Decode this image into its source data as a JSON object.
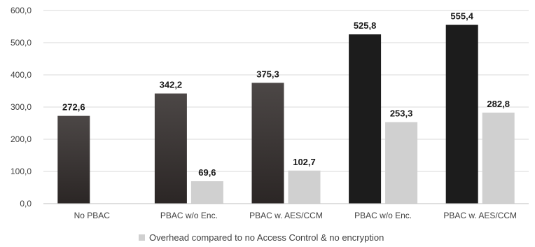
{
  "chart_data": {
    "type": "bar",
    "categories": [
      "No PBAC",
      "PBAC w/o Enc.",
      "PBAC w. AES/CCM",
      "PBAC w/o Enc.",
      "PBAC w. AES/CCM"
    ],
    "ylim": [
      0,
      600
    ],
    "yticks": [
      "0,0",
      "100,0",
      "200,0",
      "300,0",
      "400,0",
      "500,0",
      "600,0"
    ],
    "grid": true,
    "legend_position": "bottom",
    "series": [
      {
        "role": "total",
        "values": [
          272.6,
          342.2,
          375.3,
          525.8,
          555.4
        ],
        "labels": [
          "272,6",
          "342,2",
          "375,3",
          "525,8",
          "555,4"
        ],
        "colors": [
          "#3a3a3a",
          "#3a3a3a",
          "#3a3a3a",
          "#1c1c1c",
          "#1c1c1c"
        ]
      },
      {
        "name": "Overhead compared to no Access Control & no encryption",
        "role": "overhead",
        "values": [
          null,
          69.6,
          102.7,
          253.3,
          282.8
        ],
        "labels": [
          null,
          "69,6",
          "102,7",
          "253,3",
          "282,8"
        ],
        "color": "#d0d0d0"
      }
    ]
  }
}
